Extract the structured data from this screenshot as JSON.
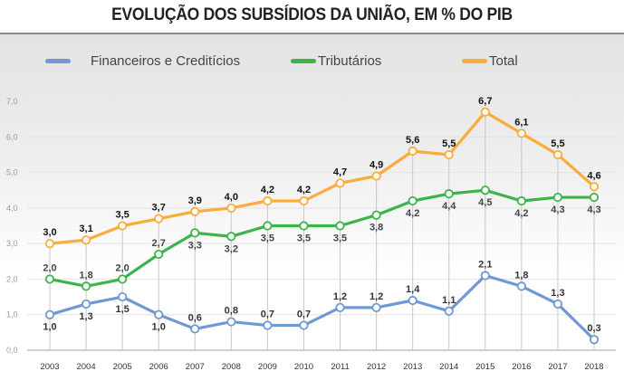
{
  "chart_data": {
    "type": "line",
    "title": "EVOLUÇÃO DOS SUBSÍDIOS DA UNIÃO, EM % DO PIB",
    "xlabel": "",
    "ylabel": "",
    "x": [
      "2003",
      "2004",
      "2005",
      "2006",
      "2007",
      "2008",
      "2009",
      "2010",
      "2011",
      "2012",
      "2013",
      "2014",
      "2015",
      "2016",
      "2017",
      "2018"
    ],
    "ylim": [
      0,
      7
    ],
    "yticks": [
      "0,0",
      "1,0",
      "2,0",
      "3,0",
      "4,0",
      "5,0",
      "6,0",
      "7,0"
    ],
    "grid": true,
    "legend_position": "top",
    "series": [
      {
        "name": "Financeiros e Creditícios",
        "color": "#6f98d4",
        "values": [
          1.0,
          1.3,
          1.5,
          1.0,
          0.6,
          0.8,
          0.7,
          0.7,
          1.2,
          1.2,
          1.4,
          1.1,
          2.1,
          1.8,
          1.3,
          0.3
        ],
        "labels": [
          "1,0",
          "1,3",
          "1,5",
          "1,0",
          "0,6",
          "0,8",
          "0,7",
          "0,7",
          "1,2",
          "1,2",
          "1,4",
          "1,1",
          "2,1",
          "1,8",
          "1,3",
          "0,3"
        ]
      },
      {
        "name": "Tributários",
        "color": "#3cb44b",
        "values": [
          2.0,
          1.8,
          2.0,
          2.7,
          3.3,
          3.2,
          3.5,
          3.5,
          3.5,
          3.8,
          4.2,
          4.4,
          4.5,
          4.2,
          4.3,
          4.3
        ],
        "labels": [
          "2,0",
          "1,8",
          "2,0",
          "2,7",
          "3,3",
          "3,2",
          "3,5",
          "3,5",
          "3,5",
          "3,8",
          "4,2",
          "4,4",
          "4,5",
          "4,2",
          "4,3",
          "4,3"
        ]
      },
      {
        "name": "Total",
        "color": "#f9ac3a",
        "values": [
          3.0,
          3.1,
          3.5,
          3.7,
          3.9,
          4.0,
          4.2,
          4.2,
          4.7,
          4.9,
          5.6,
          5.5,
          6.7,
          6.1,
          5.5,
          4.6
        ],
        "labels": [
          "3,0",
          "3,1",
          "3,5",
          "3,7",
          "3,9",
          "4,0",
          "4,2",
          "4,2",
          "4,7",
          "4,9",
          "5,6",
          "5,5",
          "6,7",
          "6,1",
          "5,5",
          "4,6"
        ]
      }
    ]
  },
  "legend": {
    "items": [
      "Financeiros e Creditícios",
      "Tributários",
      "Total"
    ]
  }
}
